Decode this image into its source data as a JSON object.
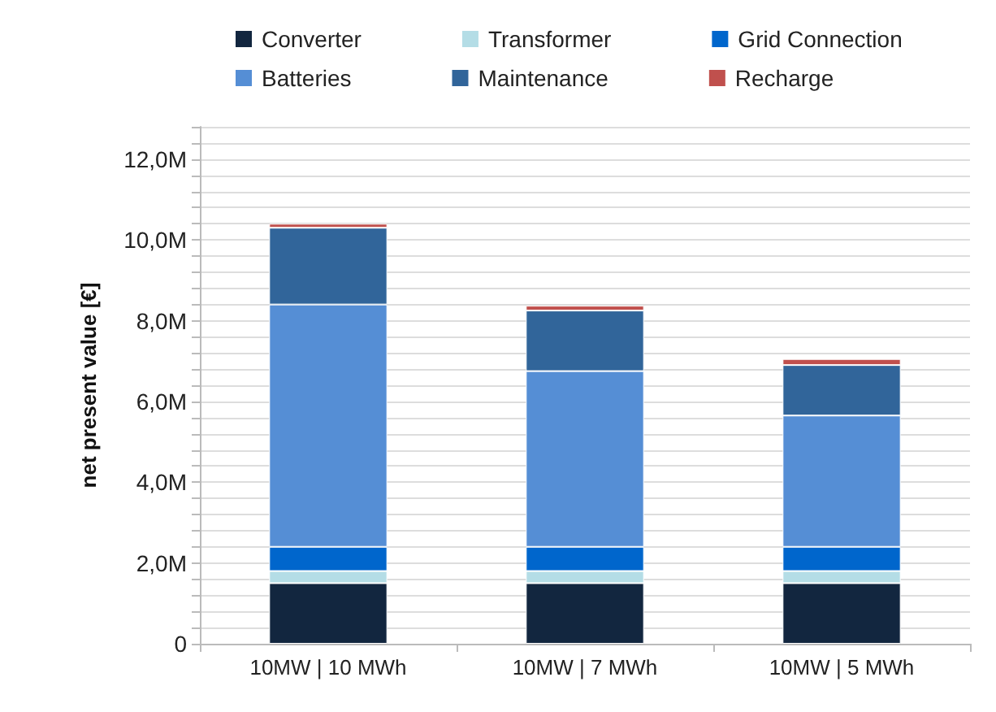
{
  "chart_data": {
    "type": "bar",
    "stacked": true,
    "ylabel": "net present value [€]",
    "categories": [
      "10MW | 10 MWh",
      "10MW | 7 MWh",
      "10MW | 5 MWh"
    ],
    "series": [
      {
        "name": "Converter",
        "color": "#12263f",
        "values": [
          1.5,
          1.5,
          1.5
        ]
      },
      {
        "name": "Transformer",
        "color": "#b4dde6",
        "values": [
          0.3,
          0.3,
          0.3
        ]
      },
      {
        "name": "Grid Connection",
        "color": "#0066cc",
        "values": [
          0.6,
          0.6,
          0.6
        ]
      },
      {
        "name": "Batteries",
        "color": "#558ed5",
        "values": [
          6.0,
          4.35,
          3.25
        ]
      },
      {
        "name": "Maintenance",
        "color": "#31659a",
        "values": [
          1.9,
          1.5,
          1.25
        ]
      },
      {
        "name": "Recharge",
        "color": "#c0504d",
        "values": [
          0.1,
          0.12,
          0.15
        ]
      }
    ],
    "ylim": [
      0,
      12.8
    ],
    "yticks": [
      {
        "value": 0,
        "label": "0"
      },
      {
        "value": 0.4,
        "label": null
      },
      {
        "value": 0.8,
        "label": null
      },
      {
        "value": 1.2,
        "label": null
      },
      {
        "value": 1.6,
        "label": null
      },
      {
        "value": 2,
        "label": "2,0M"
      },
      {
        "value": 2.4,
        "label": null
      },
      {
        "value": 2.8,
        "label": null
      },
      {
        "value": 3.2,
        "label": null
      },
      {
        "value": 3.6,
        "label": null
      },
      {
        "value": 4,
        "label": "4,0M"
      },
      {
        "value": 4.4,
        "label": null
      },
      {
        "value": 4.8,
        "label": null
      },
      {
        "value": 5.2,
        "label": null
      },
      {
        "value": 5.6,
        "label": null
      },
      {
        "value": 6,
        "label": "6,0M"
      },
      {
        "value": 6.4,
        "label": null
      },
      {
        "value": 6.8,
        "label": null
      },
      {
        "value": 7.2,
        "label": null
      },
      {
        "value": 7.6,
        "label": null
      },
      {
        "value": 8,
        "label": "8,0M"
      },
      {
        "value": 8.4,
        "label": null
      },
      {
        "value": 8.8,
        "label": null
      },
      {
        "value": 9.2,
        "label": null
      },
      {
        "value": 9.6,
        "label": null
      },
      {
        "value": 10,
        "label": "10,0M"
      },
      {
        "value": 10.4,
        "label": null
      },
      {
        "value": 10.8,
        "label": null
      },
      {
        "value": 11.2,
        "label": null
      },
      {
        "value": 11.6,
        "label": null
      },
      {
        "value": 12,
        "label": "12,0M"
      },
      {
        "value": 12.4,
        "label": null
      },
      {
        "value": 12.8,
        "label": null
      }
    ],
    "grid": "y",
    "legend": "top"
  }
}
